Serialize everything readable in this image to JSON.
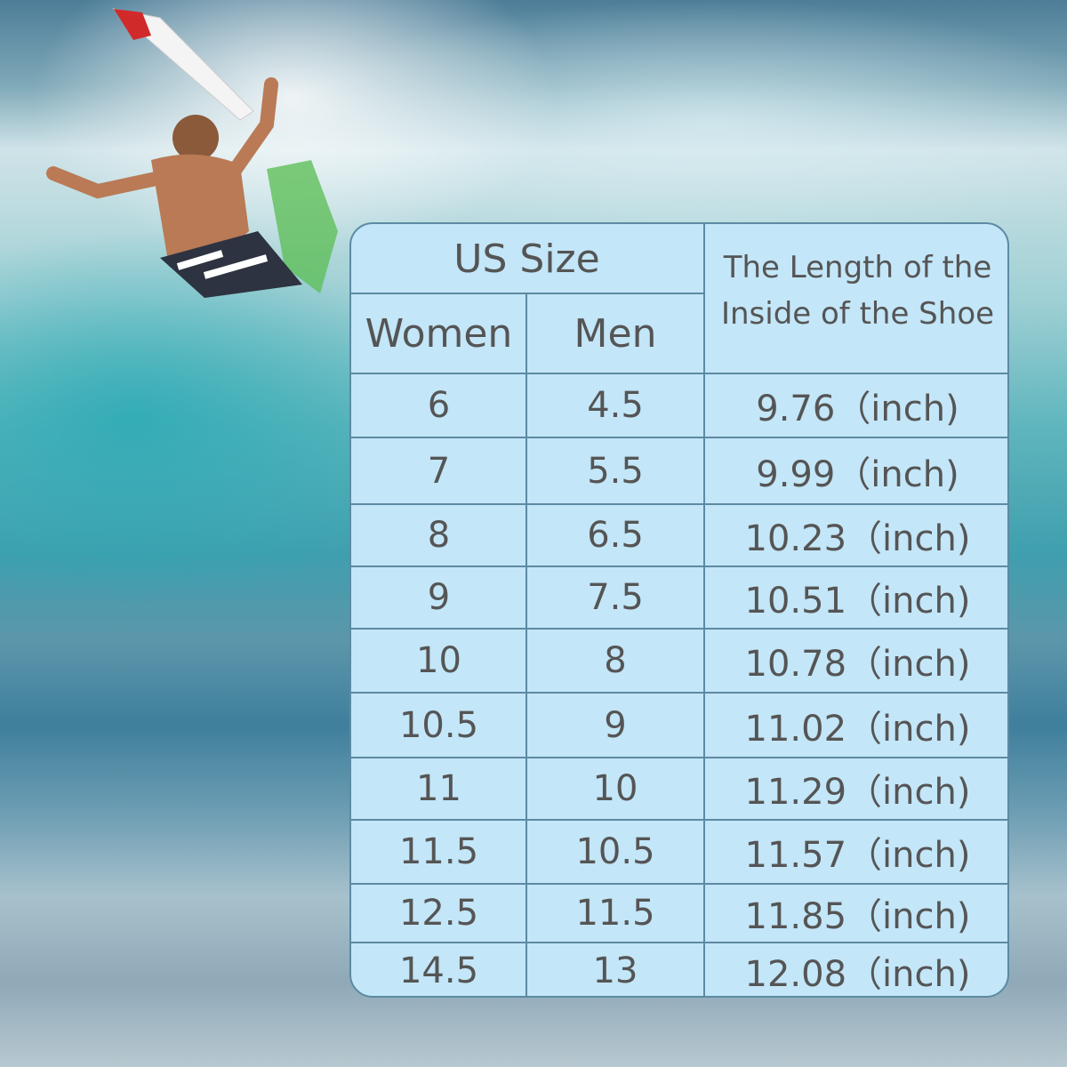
{
  "table": {
    "header": {
      "us_size": "US Size",
      "women": "Women",
      "men": "Men",
      "length_line1": "The Length of the",
      "length_line2": "Inside of the Shoe"
    },
    "rows": [
      {
        "women": "6",
        "men": "4.5",
        "length": "9.76（inch)"
      },
      {
        "women": "7",
        "men": "5.5",
        "length": "9.99（inch)"
      },
      {
        "women": "8",
        "men": "6.5",
        "length": "10.23（inch)"
      },
      {
        "women": "9",
        "men": "7.5",
        "length": "10.51（inch)"
      },
      {
        "women": "10",
        "men": "8",
        "length": "10.78（inch)"
      },
      {
        "women": "10.5",
        "men": "9",
        "length": "11.02（inch)"
      },
      {
        "women": "11",
        "men": "10",
        "length": "11.29（inch)"
      },
      {
        "women": "11.5",
        "men": "10.5",
        "length": "11.57（inch)"
      },
      {
        "women": "12.5",
        "men": "11.5",
        "length": "11.85（inch)"
      },
      {
        "women": "14.5",
        "men": "13",
        "length": "12.08（inch)"
      }
    ]
  },
  "colors": {
    "table_bg": "#c3e6f8",
    "grid": "#5d8aa3",
    "text": "#555555"
  }
}
